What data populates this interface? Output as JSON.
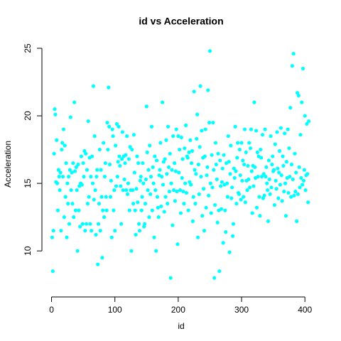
{
  "chart_data": {
    "type": "scatter",
    "title": "id vs Acceleration",
    "x_label": "id",
    "y_label": "Acceleration",
    "series": [
      {
        "name": "Acceleration",
        "color": "#00ffff",
        "x": [
          1,
          2,
          3,
          4,
          5,
          6,
          7,
          8,
          9,
          10,
          11,
          12,
          13,
          14,
          15,
          16,
          17,
          18,
          19,
          20,
          21,
          22,
          23,
          24,
          25,
          26,
          27,
          28,
          29,
          30,
          31,
          32,
          33,
          34,
          35,
          36,
          37,
          38,
          39,
          40,
          41,
          42,
          43,
          44,
          45,
          46,
          47,
          48,
          49,
          50,
          51,
          52,
          53,
          54,
          55,
          56,
          57,
          58,
          59,
          60,
          61,
          62,
          63,
          64,
          65,
          66,
          67,
          68,
          69,
          70,
          71,
          72,
          73,
          74,
          75,
          76,
          77,
          78,
          79,
          80,
          81,
          82,
          83,
          84,
          85,
          86,
          87,
          88,
          89,
          90,
          91,
          92,
          93,
          94,
          95,
          96,
          97,
          98,
          99,
          100,
          101,
          102,
          103,
          104,
          105,
          106,
          107,
          108,
          109,
          110,
          111,
          112,
          113,
          114,
          115,
          116,
          117,
          118,
          119,
          120,
          121,
          122,
          123,
          124,
          125,
          126,
          127,
          128,
          129,
          130,
          131,
          132,
          133,
          134,
          135,
          136,
          137,
          138,
          139,
          140,
          141,
          142,
          143,
          144,
          145,
          146,
          147,
          148,
          149,
          150,
          151,
          152,
          153,
          154,
          155,
          156,
          157,
          158,
          159,
          160,
          161,
          162,
          163,
          164,
          165,
          166,
          167,
          168,
          169,
          170,
          171,
          172,
          173,
          174,
          175,
          176,
          177,
          178,
          179,
          180,
          181,
          182,
          183,
          184,
          185,
          186,
          187,
          188,
          189,
          190,
          191,
          192,
          193,
          194,
          195,
          196,
          197,
          198,
          199,
          200,
          201,
          202,
          203,
          204,
          205,
          206,
          207,
          208,
          209,
          210,
          211,
          212,
          213,
          214,
          215,
          216,
          217,
          218,
          219,
          220,
          221,
          222,
          223,
          224,
          225,
          226,
          227,
          228,
          229,
          230,
          231,
          232,
          233,
          234,
          235,
          236,
          237,
          238,
          239,
          240,
          241,
          242,
          243,
          244,
          245,
          246,
          247,
          248,
          249,
          250,
          251,
          252,
          253,
          254,
          255,
          256,
          257,
          258,
          259,
          260,
          261,
          262,
          263,
          264,
          265,
          266,
          267,
          268,
          269,
          270,
          271,
          272,
          273,
          274,
          275,
          276,
          277,
          278,
          279,
          280,
          281,
          282,
          283,
          284,
          285,
          286,
          287,
          288,
          289,
          290,
          291,
          292,
          293,
          294,
          295,
          296,
          297,
          298,
          299,
          300,
          301,
          302,
          303,
          304,
          305,
          306,
          307,
          308,
          309,
          310,
          311,
          312,
          313,
          314,
          315,
          316,
          317,
          318,
          319,
          320,
          321,
          322,
          323,
          324,
          325,
          326,
          327,
          328,
          329,
          330,
          331,
          332,
          333,
          334,
          335,
          336,
          337,
          338,
          339,
          340,
          341,
          342,
          343,
          344,
          345,
          346,
          347,
          348,
          349,
          350,
          351,
          352,
          353,
          354,
          355,
          356,
          357,
          358,
          359,
          360,
          361,
          362,
          363,
          364,
          365,
          366,
          367,
          368,
          369,
          370,
          371,
          372,
          373,
          374,
          375,
          376,
          377,
          378,
          379,
          380,
          381,
          382,
          383,
          384,
          385,
          386,
          387,
          388,
          389,
          390,
          391,
          392,
          393,
          394,
          395,
          396,
          397,
          398,
          399,
          400,
          401,
          402,
          403,
          404,
          405,
          406
        ],
        "values": [
          11.0,
          8.5,
          11.5,
          17.2,
          20.5,
          20.1,
          15.1,
          18.2,
          15.0,
          13.0,
          16.0,
          15.5,
          14.5,
          15.8,
          11.5,
          17.5,
          18.0,
          15.5,
          19.0,
          12.5,
          17.8,
          14.0,
          16.5,
          11.0,
          15.0,
          13.5,
          15.5,
          12.0,
          16.0,
          19.9,
          14.5,
          15.8,
          13.5,
          16.5,
          12.5,
          21.0,
          15.9,
          13.0,
          16.2,
          14.5,
          10.0,
          16.4,
          13.0,
          14.8,
          11.8,
          15.0,
          17.0,
          14.9,
          12.0,
          16.5,
          15.5,
          17.4,
          11.5,
          17.2,
          12.0,
          16.0,
          13.5,
          19.6,
          14.0,
          16.9,
          12.0,
          15.5,
          11.5,
          17.0,
          15.0,
          22.2,
          13.8,
          18.5,
          14.5,
          11.2,
          15.5,
          16.0,
          9.0,
          12.0,
          13.5,
          17.5,
          11.5,
          16.0,
          14.0,
          9.5,
          13.0,
          18.0,
          12.5,
          15.5,
          16.5,
          14.0,
          13.0,
          19.5,
          17.5,
          22.1,
          19.2,
          16.4,
          14.0,
          15.2,
          11.0,
          19.0,
          18.5,
          13.0,
          14.5,
          11.5,
          17.8,
          14.8,
          19.4,
          15.5,
          16.6,
          19.2,
          17.0,
          16.3,
          14.8,
          12.0,
          16.8,
          18.8,
          14.5,
          17.0,
          15.3,
          16.5,
          17.1,
          14.5,
          18.5,
          14.2,
          15.0,
          16.8,
          13.0,
          17.7,
          14.5,
          10.0,
          17.5,
          14.5,
          13.5,
          18.6,
          15.8,
          13.0,
          11.2,
          14.6,
          17.0,
          13.6,
          16.5,
          12.0,
          11.5,
          15.2,
          15.5,
          13.0,
          14.0,
          16.5,
          15.0,
          11.8,
          12.0,
          13.5,
          15.3,
          20.7,
          17.3,
          14.5,
          16.0,
          12.5,
          17.8,
          14.2,
          15.5,
          19.2,
          13.0,
          16.2,
          15.0,
          11.0,
          17.0,
          14.5,
          10.0,
          16.7,
          14.0,
          13.2,
          12.5,
          15.6,
          16.0,
          18.0,
          13.3,
          15.5,
          21.0,
          14.9,
          16.6,
          12.9,
          16.8,
          14.0,
          18.2,
          15.7,
          13.5,
          19.2,
          16.2,
          14.4,
          17.2,
          8.0,
          15.0,
          16.0,
          11.9,
          18.5,
          14.5,
          16.5,
          13.7,
          15.9,
          19.0,
          14.4,
          10.5,
          18.5,
          15.8,
          17.5,
          14.5,
          12.8,
          18.4,
          15.4,
          16.8,
          14.4,
          13.5,
          17.6,
          15.0,
          19.3,
          14.3,
          17.0,
          16.9,
          13.0,
          17.3,
          15.1,
          18.2,
          14.9,
          16.5,
          17.4,
          12.2,
          14.0,
          21.8,
          16.0,
          13.5,
          15.7,
          18.3,
          20.1,
          11.0,
          16.4,
          14.2,
          17.7,
          22.2,
          15.5,
          18.9,
          12.6,
          16.9,
          14.6,
          11.5,
          17.0,
          19.0,
          13.2,
          15.6,
          16.2,
          21.9,
          14.1,
          19.5,
          24.8,
          15.0,
          12.8,
          17.1,
          14.7,
          19.5,
          16.0,
          8.0,
          13.4,
          18.0,
          16.4,
          15.3,
          12.1,
          17.2,
          13.0,
          8.5,
          16.7,
          14.8,
          13.1,
          15.1,
          16.1,
          10.6,
          17.1,
          14.9,
          13.0,
          11.4,
          16.5,
          15.0,
          14.0,
          18.5,
          16.6,
          9.9,
          15.7,
          17.8,
          13.9,
          14.7,
          11.1,
          12.0,
          16.1,
          15.4,
          19.2,
          15.9,
          13.5,
          16.9,
          18.0,
          14.3,
          14.2,
          17.5,
          15.6,
          13.8,
          18.0,
          15.2,
          16.7,
          14.0,
          16.4,
          19.0,
          13.6,
          17.3,
          15.2,
          14.5,
          16.3,
          15.3,
          18.0,
          14.7,
          17.6,
          19.0,
          15.9,
          12.8,
          16.3,
          14.8,
          21.0,
          16.2,
          15.4,
          18.9,
          13.2,
          17.3,
          15.5,
          17.0,
          14.0,
          12.6,
          17.5,
          16.9,
          15.5,
          18.6,
          13.9,
          15.7,
          14.1,
          19.0,
          15.5,
          16.2,
          15.0,
          14.5,
          12.2,
          16.7,
          15.3,
          14.2,
          18.5,
          14.7,
          16.4,
          17.0,
          15.9,
          16.0,
          13.4,
          17.9,
          15.2,
          14.6,
          18.8,
          16.1,
          13.9,
          15.8,
          17.4,
          14.9,
          19.1,
          15.6,
          13.7,
          17.0,
          16.3,
          14.4,
          18.7,
          15.0,
          12.6,
          16.6,
          15.4,
          19.0,
          14.3,
          17.6,
          15.5,
          20.6,
          14.0,
          16.4,
          23.7,
          15.3,
          24.6,
          14.1,
          17.2,
          14.4,
          15.8,
          12.2,
          21.7,
          14.2,
          21.5,
          16.2,
          14.7,
          18.6,
          15.4,
          21.0,
          14.9,
          23.5,
          15.2,
          16.0,
          20.0,
          14.5,
          15.6,
          19.4,
          15.7,
          13.6,
          19.6
        ]
      }
    ],
    "xlim": [
      -15.2,
      422.2
    ],
    "ylim": [
      7.328,
      25.472
    ],
    "xticks": [
      0,
      100,
      200,
      300,
      400
    ],
    "yticks": [
      10,
      15,
      20,
      25
    ],
    "grid": false
  }
}
